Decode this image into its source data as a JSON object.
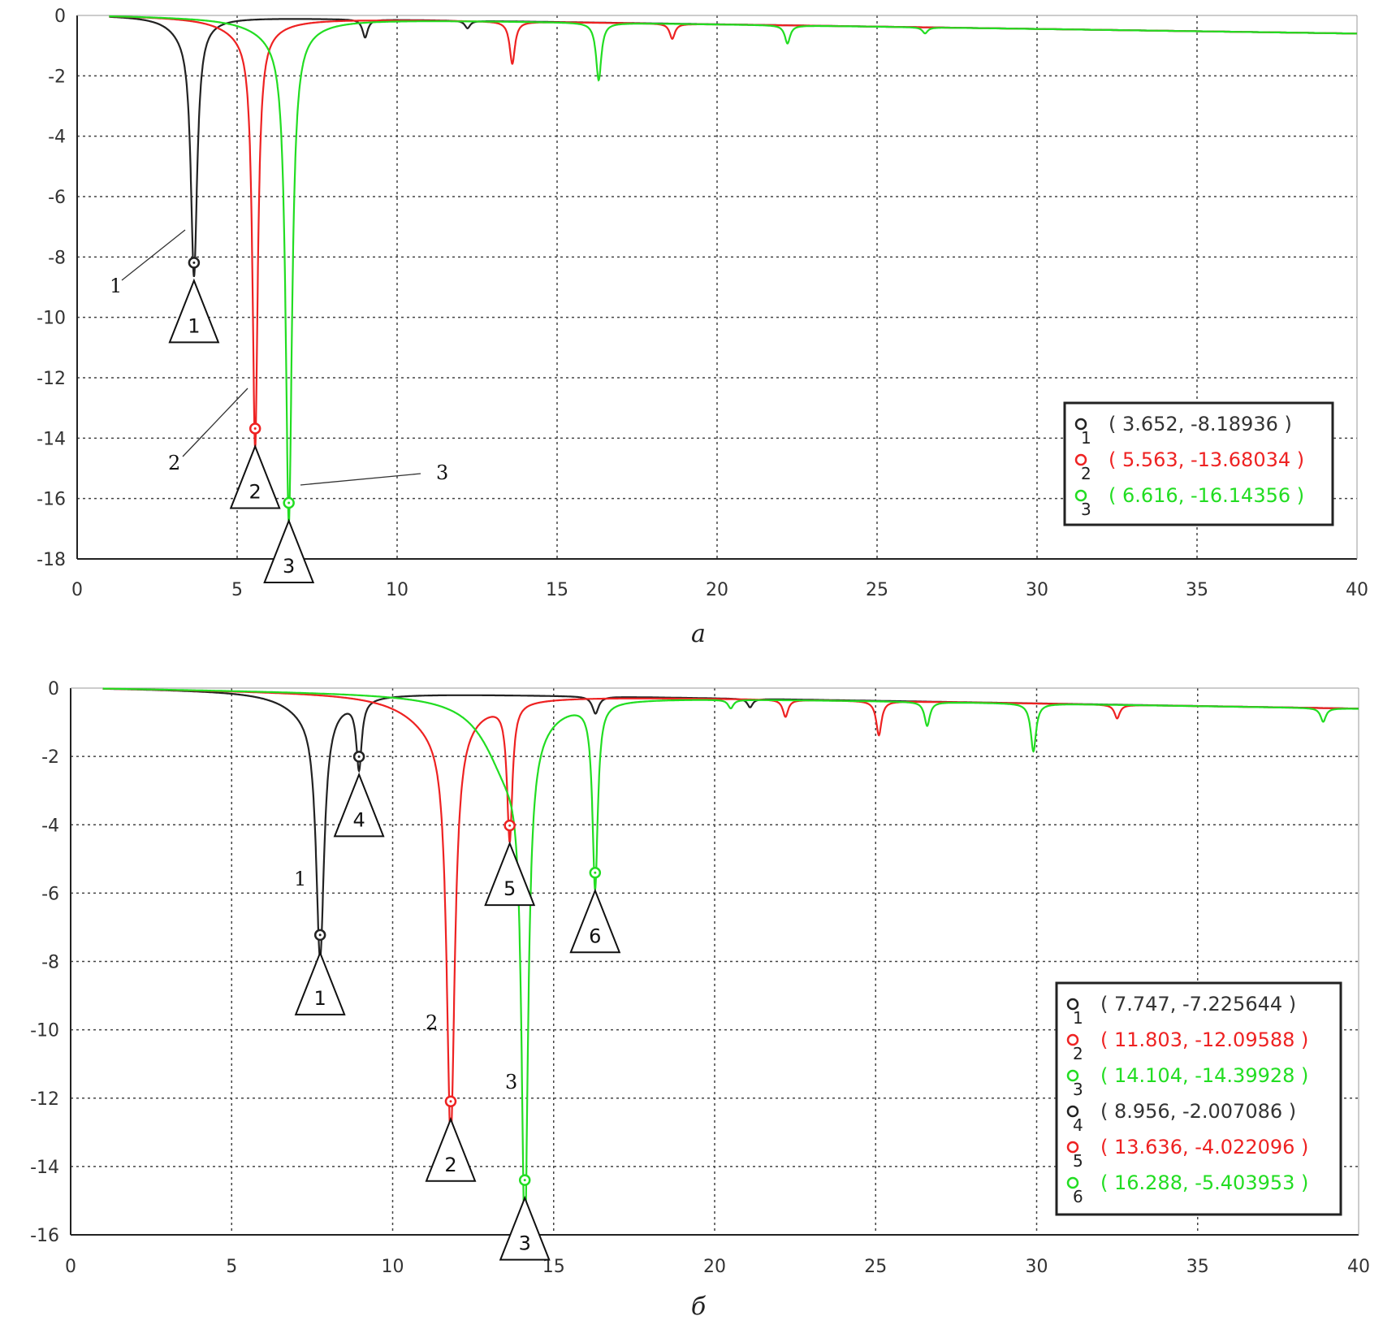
{
  "chart_data": [
    {
      "type": "line",
      "caption": "а",
      "xlim": [
        0,
        40
      ],
      "ylim": [
        -18,
        0
      ],
      "xticks": [
        0,
        5,
        10,
        15,
        20,
        25,
        30,
        35,
        40
      ],
      "yticks": [
        0,
        -2,
        -4,
        -6,
        -8,
        -10,
        -12,
        -14,
        -16,
        -18
      ],
      "grid": true,
      "legend_placement": "right",
      "series_colors": {
        "1": "#222222",
        "2": "#ee2222",
        "3": "#22dd22"
      },
      "baseline_end": -0.6,
      "series": [
        {
          "id": "1",
          "color": "#222222",
          "dips": [
            {
              "x": 3.652,
              "depth": 8.19,
              "width": 0.12
            },
            {
              "x": 3.4,
              "depth": 0.5,
              "width": 0.6
            },
            {
              "x": 9.0,
              "depth": 0.6,
              "width": 0.1
            },
            {
              "x": 12.2,
              "depth": 0.25,
              "width": 0.1
            }
          ]
        },
        {
          "id": "2",
          "color": "#ee2222",
          "dips": [
            {
              "x": 5.563,
              "depth": 13.68,
              "width": 0.1
            },
            {
              "x": 5.4,
              "depth": 0.6,
              "width": 0.9
            },
            {
              "x": 13.6,
              "depth": 1.4,
              "width": 0.1
            },
            {
              "x": 18.6,
              "depth": 0.5,
              "width": 0.1
            }
          ]
        },
        {
          "id": "3",
          "color": "#22dd22",
          "dips": [
            {
              "x": 6.616,
              "depth": 16.14,
              "width": 0.12
            },
            {
              "x": 6.4,
              "depth": 0.6,
              "width": 1.0
            },
            {
              "x": 16.3,
              "depth": 1.9,
              "width": 0.1
            },
            {
              "x": 22.2,
              "depth": 0.6,
              "width": 0.1
            },
            {
              "x": 26.5,
              "depth": 0.2,
              "width": 0.1
            }
          ]
        }
      ],
      "markers": [
        {
          "label": "1",
          "series": "1",
          "x": 3.652,
          "y": -8.18936,
          "text": "( 3.652, -8.18936 )"
        },
        {
          "label": "2",
          "series": "2",
          "x": 5.563,
          "y": -13.68034,
          "text": "( 5.563, -13.68034 )"
        },
        {
          "label": "3",
          "series": "3",
          "x": 6.616,
          "y": -16.14356,
          "text": "( 6.616, -16.14356 )"
        }
      ],
      "annotations": [
        "1",
        "2",
        "3"
      ]
    },
    {
      "type": "line",
      "caption": "б",
      "xlim": [
        0,
        40
      ],
      "ylim": [
        -16,
        0
      ],
      "xticks": [
        0,
        5,
        10,
        15,
        20,
        25,
        30,
        35,
        40
      ],
      "yticks": [
        0,
        -2,
        -4,
        -6,
        -8,
        -10,
        -12,
        -14,
        -16
      ],
      "grid": true,
      "legend_placement": "right",
      "baseline_end": -0.6,
      "series": [
        {
          "id": "1",
          "color": "#222222",
          "dips": [
            {
              "x": 7.747,
              "depth": 7.23,
              "width": 0.15
            },
            {
              "x": 7.5,
              "depth": 0.6,
              "width": 1.0
            },
            {
              "x": 8.956,
              "depth": 2.0,
              "width": 0.1
            },
            {
              "x": 16.3,
              "depth": 0.5,
              "width": 0.12
            },
            {
              "x": 21.1,
              "depth": 0.25,
              "width": 0.1
            }
          ]
        },
        {
          "id": "2",
          "color": "#ee2222",
          "dips": [
            {
              "x": 11.803,
              "depth": 12.1,
              "width": 0.15
            },
            {
              "x": 11.5,
              "depth": 1.0,
              "width": 1.2
            },
            {
              "x": 13.636,
              "depth": 4.0,
              "width": 0.1
            },
            {
              "x": 22.2,
              "depth": 0.5,
              "width": 0.1
            },
            {
              "x": 25.1,
              "depth": 1.0,
              "width": 0.1
            },
            {
              "x": 32.5,
              "depth": 0.4,
              "width": 0.1
            }
          ]
        },
        {
          "id": "3",
          "color": "#22dd22",
          "dips": [
            {
              "x": 14.104,
              "depth": 14.4,
              "width": 0.12
            },
            {
              "x": 13.6,
              "depth": 2.2,
              "width": 0.9
            },
            {
              "x": 16.288,
              "depth": 5.4,
              "width": 0.1
            },
            {
              "x": 20.5,
              "depth": 0.25,
              "width": 0.1
            },
            {
              "x": 26.6,
              "depth": 0.7,
              "width": 0.1
            },
            {
              "x": 29.9,
              "depth": 1.4,
              "width": 0.1
            },
            {
              "x": 38.9,
              "depth": 0.4,
              "width": 0.1
            }
          ]
        }
      ],
      "markers": [
        {
          "label": "1",
          "series": "1",
          "x": 7.747,
          "y": -7.225644,
          "text": "( 7.747, -7.225644 )"
        },
        {
          "label": "2",
          "series": "2",
          "x": 11.803,
          "y": -12.09588,
          "text": "( 11.803, -12.09588 )"
        },
        {
          "label": "3",
          "series": "3",
          "x": 14.104,
          "y": -14.39928,
          "text": "( 14.104, -14.39928 )"
        },
        {
          "label": "4",
          "series": "1",
          "x": 8.956,
          "y": -2.007086,
          "text": "( 8.956, -2.007086 )"
        },
        {
          "label": "5",
          "series": "2",
          "x": 13.636,
          "y": -4.022096,
          "text": "( 13.636, -4.022096 )"
        },
        {
          "label": "6",
          "series": "3",
          "x": 16.288,
          "y": -5.403953,
          "text": "( 16.288, -5.403953 )"
        }
      ],
      "annotations": [
        "1",
        "2",
        "3"
      ]
    }
  ]
}
